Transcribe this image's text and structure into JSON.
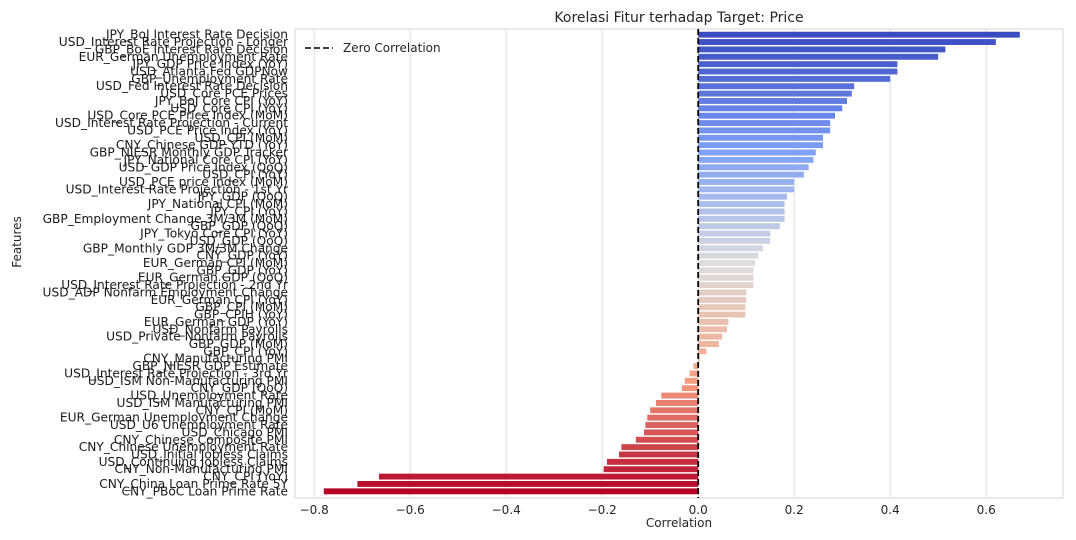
{
  "chart_data": {
    "type": "bar",
    "orientation": "horizontal",
    "title": "Korelasi Fitur terhadap Target: Price",
    "xlabel": "Correlation",
    "ylabel": "Features",
    "xlim": [
      -0.84,
      0.76
    ],
    "xticks": [
      -0.8,
      -0.6,
      -0.4,
      -0.2,
      0.0,
      0.2,
      0.4,
      0.6
    ],
    "xtick_labels": [
      "−0.8",
      "−0.6",
      "−0.4",
      "−0.2",
      "0.0",
      "0.2",
      "0.4",
      "0.6"
    ],
    "grid": true,
    "legend": {
      "placement": "top-left",
      "entries": [
        {
          "label": "Zero Correlation",
          "style": "dashed",
          "color": "#000000"
        }
      ]
    },
    "reference_line": {
      "x": 0.0,
      "style": "dashed",
      "color": "#000000"
    },
    "colormap": "coolwarm",
    "categories": [
      "JPY_BoJ Interest Rate Decision",
      "USD_Interest Rate Projection - Longer",
      "GBP_BoE Interest Rate Decision",
      "EUR_German Unemployment Rate",
      "JPY_GDP Price Index (YoY)",
      "USD_Atlanta Fed GDPNow",
      "GBP_Unemployment Rate",
      "USD_Fed Interest Rate Decision",
      "USD_Core PCE Prices",
      "JPY_BoJ Core CPI (YoY)",
      "USD_Core CPI (YoY)",
      "USD_Core PCE Price Index (MoM)",
      "USD_Interest Rate Projection - Current",
      "USD_PCE Price Index (YoY)",
      "USD_CPI (MoM)",
      "CNY_Chinese GDP YTD (YoY)",
      "GBP_NIESR Monthly GDP Tracker",
      "JPY_National Core CPI (YoY)",
      "USD_GDP Price Index (QoQ)",
      "USD_CPI (YoY)",
      "USD_PCE price index (MoM)",
      "USD_Interest Rate Projection - 1st Yr",
      "JPY_GDP (QoQ)",
      "JPY_National CPI (MoM)",
      "JPY_CPI (YoY)",
      "GBP_Employment Change 3M/3M (MoM)",
      "GBP_GDP (QoQ)",
      "JPY_Tokyo Core CPI (YoY)",
      "USD_GDP (QoQ)",
      "GBP_Monthly GDP 3M/3M Change",
      "CNY_GDP (YoY)",
      "EUR_German CPI (MoM)",
      "GBP_GDP (YoY)",
      "EUR_German GDP (QoQ)",
      "USD_Interest Rate Projection - 2nd Yr",
      "USD_ADP Nonfarm Employment Change",
      "EUR_German CPI (YoY)",
      "GBP_CPI (MoM)",
      "GBP_CPIH (YoY)",
      "EUR_German GDP (YoY)",
      "USD_Nonfarm Payrolls",
      "USD_Private Nonfarm Payrolls",
      "GBP_GDP (MoM)",
      "GBP_CPI (YoY)",
      "CNY_Manufacturing PMI",
      "GBP_NIESR GDP Estimate",
      "USD_Interest Rate Projection - 3rd Yr",
      "USD_ISM Non-Manufacturing PMI",
      "CNY_GDP (QoQ)",
      "USD_Unemployment Rate",
      "USD_ISM Manufacturing PMI",
      "CNY_CPI (MoM)",
      "EUR_German Unemployment Change",
      "USD_U6 Unemployment Rate",
      "USD_Chicago PMI",
      "CNY_Chinese Composite PMI",
      "CNY_Chinese Unemployment Rate",
      "USD_Initial Jobless Claims",
      "USD_Continuing Jobless Claims",
      "CNY_Non-Manufacturing PMI",
      "CNY_CPI (YoY)",
      "CNY_China Loan Prime Rate 5Y",
      "CNY_PBoC Loan Prime Rate"
    ],
    "values": [
      0.67,
      0.62,
      0.515,
      0.5,
      0.415,
      0.415,
      0.4,
      0.325,
      0.32,
      0.31,
      0.3,
      0.285,
      0.275,
      0.275,
      0.26,
      0.26,
      0.245,
      0.24,
      0.23,
      0.22,
      0.2,
      0.2,
      0.185,
      0.18,
      0.18,
      0.18,
      0.17,
      0.15,
      0.15,
      0.135,
      0.125,
      0.118,
      0.115,
      0.115,
      0.115,
      0.1,
      0.1,
      0.098,
      0.098,
      0.063,
      0.06,
      0.05,
      0.043,
      0.017,
      0.003,
      -0.01,
      -0.018,
      -0.028,
      -0.034,
      -0.077,
      -0.088,
      -0.1,
      -0.106,
      -0.11,
      -0.113,
      -0.13,
      -0.16,
      -0.165,
      -0.19,
      -0.197,
      -0.665,
      -0.71,
      -0.78
    ]
  }
}
